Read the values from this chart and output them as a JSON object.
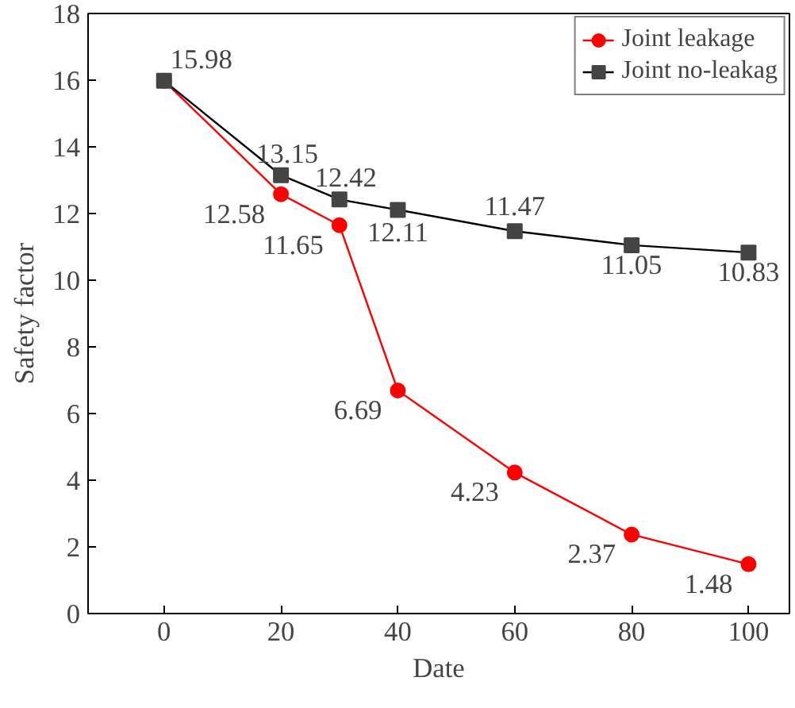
{
  "chart_data": {
    "type": "line",
    "xlabel": "Date",
    "ylabel": "Safety factor",
    "x": [
      0,
      20,
      30,
      40,
      60,
      80,
      100
    ],
    "xlim": [
      -13,
      107
    ],
    "xticks": [
      0,
      20,
      40,
      60,
      80,
      100
    ],
    "ylim": [
      0,
      18
    ],
    "yticks": [
      0,
      2,
      4,
      6,
      8,
      10,
      12,
      14,
      16,
      18
    ],
    "series": [
      {
        "name": "Joint leakage",
        "color": "#ff0000",
        "marker": "circle",
        "values": [
          15.98,
          12.58,
          11.65,
          6.69,
          4.23,
          2.37,
          1.48
        ],
        "value_labels": [
          null,
          "12.58",
          "11.65",
          "6.69",
          "4.23",
          "2.37",
          "1.48"
        ]
      },
      {
        "name": "Joint no-leakag",
        "color": "#000000",
        "marker": "square",
        "values": [
          15.98,
          13.15,
          12.42,
          12.11,
          11.47,
          11.05,
          10.83
        ],
        "value_labels": [
          "15.98",
          "13.15",
          "12.42",
          "12.11",
          "11.47",
          "11.05",
          "10.83"
        ]
      }
    ],
    "legend": "top right",
    "grid": false
  }
}
